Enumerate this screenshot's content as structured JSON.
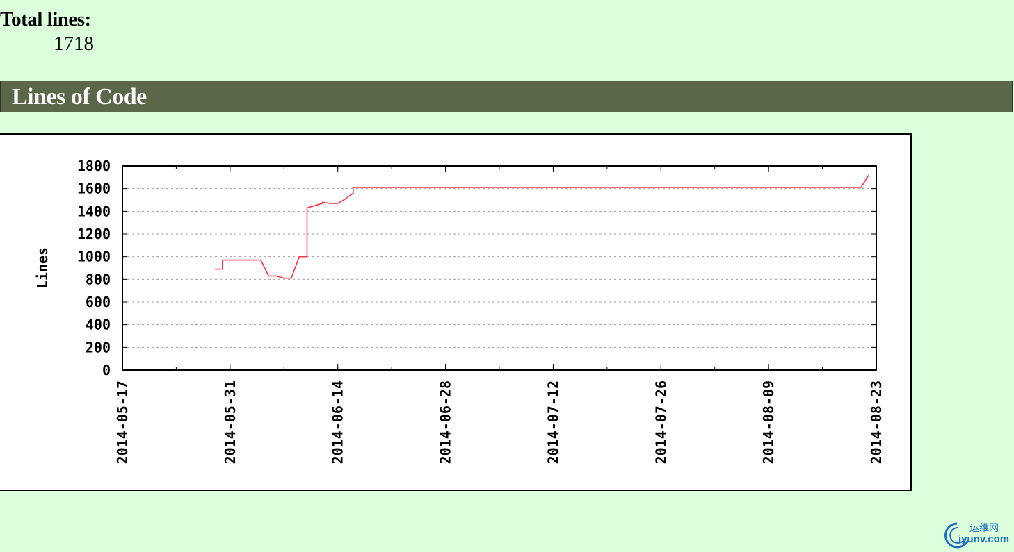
{
  "stats": {
    "total_label": "Total lines:",
    "total_value": "1718"
  },
  "section": {
    "title": "Lines of Code"
  },
  "watermark": {
    "cn_text": "运维网",
    "en_text": "iyunv.com"
  },
  "chart_data": {
    "type": "line",
    "title": "",
    "xlabel": "",
    "ylabel": "Lines",
    "x_ticks": [
      "2014-05-17",
      "2014-05-31",
      "2014-06-14",
      "2014-06-28",
      "2014-07-12",
      "2014-07-26",
      "2014-08-09",
      "2014-08-23"
    ],
    "y_ticks": [
      "0",
      "200",
      "400",
      "600",
      "800",
      "1000",
      "1200",
      "1400",
      "1600",
      "1800"
    ],
    "ylim": [
      0,
      1800
    ],
    "xlim": [
      "2014-05-17",
      "2014-08-23"
    ],
    "grid": "horizontal dashed",
    "line_color": "#ff3344",
    "series": [
      {
        "points": [
          [
            "2014-05-29",
            890
          ],
          [
            "2014-05-30",
            890
          ],
          [
            "2014-05-30",
            970
          ],
          [
            "2014-06-04",
            970
          ],
          [
            "2014-06-05",
            830
          ],
          [
            "2014-06-06",
            830
          ],
          [
            "2014-06-07",
            810
          ],
          [
            "2014-06-08",
            810
          ],
          [
            "2014-06-08",
            820
          ],
          [
            "2014-06-09",
            1000
          ],
          [
            "2014-06-10",
            1000
          ],
          [
            "2014-06-10",
            1300
          ],
          [
            "2014-06-10",
            1430
          ],
          [
            "2014-06-11",
            1450
          ],
          [
            "2014-06-12",
            1470
          ],
          [
            "2014-06-12",
            1480
          ],
          [
            "2014-06-13",
            1470
          ],
          [
            "2014-06-14",
            1470
          ],
          [
            "2014-06-15",
            1510
          ],
          [
            "2014-06-16",
            1560
          ],
          [
            "2014-06-16",
            1610
          ],
          [
            "2014-06-28",
            1610
          ],
          [
            "2014-07-12",
            1610
          ],
          [
            "2014-07-26",
            1610
          ],
          [
            "2014-08-09",
            1610
          ],
          [
            "2014-08-21",
            1610
          ],
          [
            "2014-08-22",
            1718
          ]
        ]
      }
    ]
  }
}
